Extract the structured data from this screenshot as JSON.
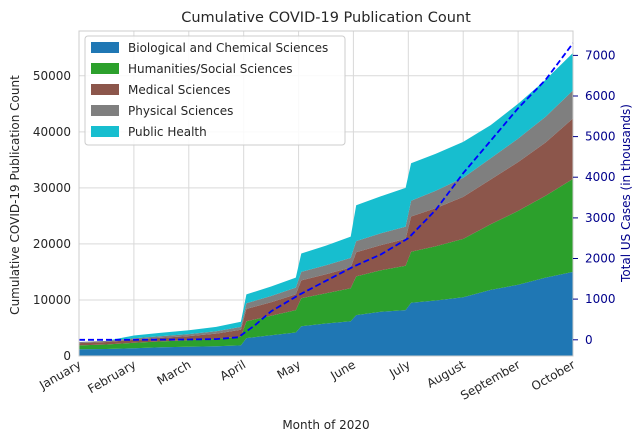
{
  "chart_data": {
    "type": "area",
    "stacked": true,
    "title": "Cumulative COVID-19 Publication Count",
    "xlabel": "Month of 2020",
    "ylabel": "Cumulative COVID-19 Publication Count",
    "y2label": "Total US Cases (in thousands)",
    "ylim": [
      0,
      58000
    ],
    "y2lim": [
      -400,
      7600
    ],
    "xlim": [
      0,
      9
    ],
    "grid": true,
    "legend_position": "top-left",
    "categories": [
      "January",
      "February",
      "March",
      "April",
      "May",
      "June",
      "July",
      "August",
      "September",
      "October"
    ],
    "yticks": [
      0,
      10000,
      20000,
      30000,
      40000,
      50000
    ],
    "ytick_labels": [
      "0",
      "10000",
      "20000",
      "30000",
      "40000",
      "50000"
    ],
    "y2ticks": [
      0,
      1000,
      2000,
      3000,
      4000,
      5000,
      6000,
      7000
    ],
    "y2tick_labels": [
      "0",
      "1000",
      "2000",
      "3000",
      "4000",
      "5000",
      "6000",
      "7000"
    ],
    "x": [
      0,
      0.5,
      1.0,
      1.5,
      2.0,
      2.5,
      2.95,
      3.05,
      3.5,
      3.95,
      4.05,
      4.5,
      4.95,
      5.05,
      5.5,
      5.95,
      6.05,
      6.5,
      7.0,
      7.5,
      8.0,
      8.5,
      9.0
    ],
    "series": [
      {
        "name": "Biological and Chemical Sciences",
        "color": "#1f77b4",
        "values": [
          1200,
          1250,
          1400,
          1550,
          1650,
          1750,
          1900,
          3200,
          3700,
          4200,
          5300,
          5800,
          6200,
          7300,
          7900,
          8200,
          9500,
          9900,
          10500,
          11800,
          12700,
          14000,
          15000
        ]
      },
      {
        "name": "Humanities/Social Sciences",
        "color": "#2ca02c",
        "values": [
          700,
          800,
          950,
          1050,
          1150,
          1300,
          1500,
          3000,
          3500,
          4000,
          5000,
          5400,
          5900,
          6900,
          7400,
          7900,
          9100,
          9700,
          10400,
          11700,
          13200,
          14600,
          16600
        ]
      },
      {
        "name": "Medical Sciences",
        "color": "#8c564b",
        "values": [
          400,
          450,
          550,
          650,
          750,
          950,
          1300,
          2200,
          2400,
          2800,
          3200,
          3400,
          3700,
          4300,
          4500,
          4800,
          6300,
          6800,
          7500,
          8000,
          8700,
          9500,
          10800
        ]
      },
      {
        "name": "Physical Sciences",
        "color": "#7f7f7f",
        "values": [
          200,
          200,
          250,
          300,
          350,
          400,
          500,
          1000,
          1100,
          1200,
          1500,
          1600,
          1700,
          2000,
          2100,
          2200,
          2800,
          3100,
          3400,
          3800,
          4200,
          4600,
          5000
        ]
      },
      {
        "name": "Public Health",
        "color": "#17becf",
        "values": [
          0,
          0,
          500,
          600,
          700,
          800,
          900,
          1600,
          1700,
          1800,
          3300,
          3500,
          3800,
          6400,
          6600,
          6900,
          6700,
          6600,
          6400,
          5900,
          6200,
          6600,
          6700
        ]
      }
    ],
    "overlay": {
      "name": "Total US Cases (in thousands)",
      "axis": "right",
      "style": "dashed",
      "color": "#0000ff",
      "x": [
        0,
        1.0,
        2.0,
        2.5,
        2.9,
        3.2,
        3.5,
        4.0,
        4.5,
        5.0,
        5.5,
        6.0,
        6.5,
        7.0,
        7.5,
        8.0,
        8.5,
        9.0
      ],
      "values": [
        0,
        0,
        5,
        15,
        60,
        350,
        700,
        1100,
        1450,
        1800,
        2100,
        2500,
        3200,
        4100,
        4900,
        5700,
        6400,
        7300
      ]
    }
  }
}
